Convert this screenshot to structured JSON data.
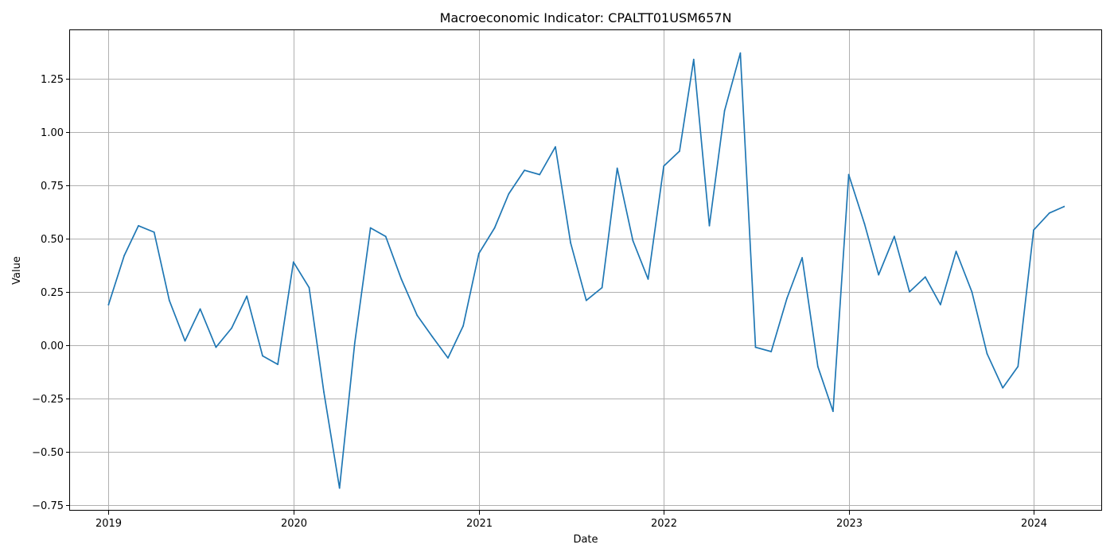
{
  "chart_data": {
    "type": "line",
    "title": "Macroeconomic Indicator: CPALTT01USM657N",
    "xlabel": "Date",
    "ylabel": "Value",
    "grid": true,
    "legend": "none",
    "xlim": [
      "2018-10-17",
      "2024-05-15"
    ],
    "ylim": [
      -0.776,
      1.477
    ],
    "x_ticks": [
      {
        "date": "2019-01-01",
        "label": "2019"
      },
      {
        "date": "2020-01-01",
        "label": "2020"
      },
      {
        "date": "2021-01-01",
        "label": "2021"
      },
      {
        "date": "2022-01-01",
        "label": "2022"
      },
      {
        "date": "2023-01-01",
        "label": "2023"
      },
      {
        "date": "2024-01-01",
        "label": "2024"
      }
    ],
    "y_ticks": [
      {
        "value": -0.75,
        "label": "−0.75"
      },
      {
        "value": -0.5,
        "label": "−0.50"
      },
      {
        "value": -0.25,
        "label": "−0.25"
      },
      {
        "value": 0,
        "label": "0.00"
      },
      {
        "value": 0.25,
        "label": "0.25"
      },
      {
        "value": 0.5,
        "label": "0.50"
      },
      {
        "value": 0.75,
        "label": "0.75"
      },
      {
        "value": 1.0,
        "label": "1.00"
      },
      {
        "value": 1.25,
        "label": "1.25"
      }
    ],
    "series": [
      {
        "color": "#1f77b4",
        "x": [
          "2019-01-01",
          "2019-02-01",
          "2019-03-01",
          "2019-04-01",
          "2019-05-01",
          "2019-06-01",
          "2019-07-01",
          "2019-08-01",
          "2019-09-01",
          "2019-10-01",
          "2019-11-01",
          "2019-12-01",
          "2020-01-01",
          "2020-02-01",
          "2020-03-01",
          "2020-04-01",
          "2020-05-01",
          "2020-06-01",
          "2020-07-01",
          "2020-08-01",
          "2020-09-01",
          "2020-10-01",
          "2020-11-01",
          "2020-12-01",
          "2021-01-01",
          "2021-02-01",
          "2021-03-01",
          "2021-04-01",
          "2021-05-01",
          "2021-06-01",
          "2021-07-01",
          "2021-08-01",
          "2021-09-01",
          "2021-10-01",
          "2021-11-01",
          "2021-12-01",
          "2022-01-01",
          "2022-02-01",
          "2022-03-01",
          "2022-04-01",
          "2022-05-01",
          "2022-06-01",
          "2022-07-01",
          "2022-08-01",
          "2022-09-01",
          "2022-10-01",
          "2022-11-01",
          "2022-12-01",
          "2023-01-01",
          "2023-02-01",
          "2023-03-01",
          "2023-04-01",
          "2023-05-01",
          "2023-06-01",
          "2023-07-01",
          "2023-08-01",
          "2023-09-01",
          "2023-10-01",
          "2023-11-01",
          "2023-12-01",
          "2024-01-01",
          "2024-02-01",
          "2024-03-01"
        ],
        "values": [
          0.19,
          0.42,
          0.56,
          0.53,
          0.21,
          0.02,
          0.17,
          -0.01,
          0.08,
          0.23,
          -0.05,
          -0.09,
          0.39,
          0.27,
          -0.22,
          -0.67,
          0.01,
          0.55,
          0.51,
          0.31,
          0.14,
          0.04,
          -0.06,
          0.09,
          0.43,
          0.55,
          0.71,
          0.82,
          0.8,
          0.93,
          0.48,
          0.21,
          0.27,
          0.83,
          0.49,
          0.31,
          0.84,
          0.91,
          1.34,
          0.56,
          1.1,
          1.37,
          -0.01,
          -0.03,
          0.22,
          0.41,
          -0.1,
          -0.31,
          0.8,
          0.57,
          0.33,
          0.51,
          0.25,
          0.32,
          0.19,
          0.44,
          0.25,
          -0.04,
          -0.2,
          -0.1,
          0.54,
          0.62,
          0.65
        ]
      }
    ]
  }
}
